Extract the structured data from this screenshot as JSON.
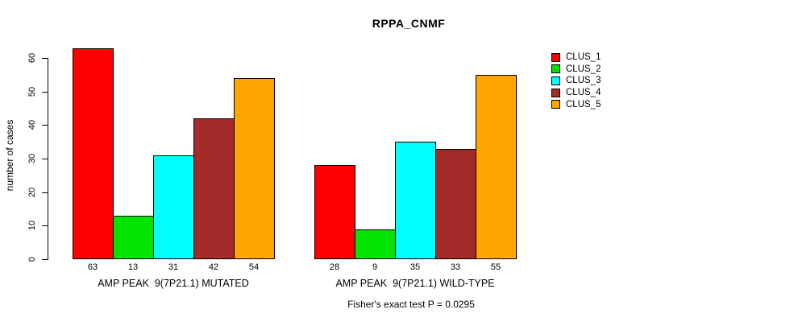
{
  "title": "RPPA_CNMF",
  "caption": "Fisher's exact test P = 0.0295",
  "chart_data": {
    "type": "bar",
    "title": "RPPA_CNMF",
    "xlabel": "",
    "ylabel": "number of cases",
    "ylim": [
      0,
      65
    ],
    "y_ticks": [
      0,
      10,
      20,
      30,
      40,
      50,
      60
    ],
    "grid": false,
    "legend_position": "right",
    "bar_value_labels_shown": true,
    "categories": [
      "AMP PEAK  9(7P21.1) MUTATED",
      "AMP PEAK  9(7P21.1) WILD-TYPE"
    ],
    "series": [
      {
        "name": "CLUS_1",
        "color": "#ff0000",
        "values": [
          63,
          28
        ]
      },
      {
        "name": "CLUS_2",
        "color": "#00e400",
        "values": [
          13,
          9
        ]
      },
      {
        "name": "CLUS_3",
        "color": "#00ffff",
        "values": [
          31,
          35
        ]
      },
      {
        "name": "CLUS_4",
        "color": "#a52a2a",
        "values": [
          42,
          33
        ]
      },
      {
        "name": "CLUS_5",
        "color": "#ffa500",
        "values": [
          54,
          55
        ]
      }
    ],
    "annotations": [
      "Fisher's exact test P = 0.0295"
    ]
  }
}
